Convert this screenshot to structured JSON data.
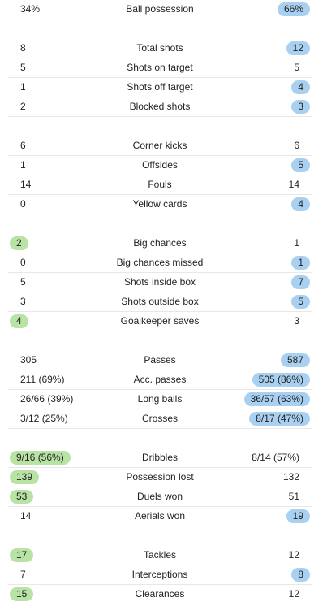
{
  "colors": {
    "home_highlight": "#b8e3a4",
    "away_highlight": "#a9d0f0",
    "divider": "#e8e8e8"
  },
  "groups": [
    {
      "rows": [
        {
          "label": "Ball possession",
          "home": "34%",
          "away": "66%",
          "winner": "away"
        }
      ]
    },
    {
      "rows": [
        {
          "label": "Total shots",
          "home": "8",
          "away": "12",
          "winner": "away"
        },
        {
          "label": "Shots on target",
          "home": "5",
          "away": "5",
          "winner": "none"
        },
        {
          "label": "Shots off target",
          "home": "1",
          "away": "4",
          "winner": "away"
        },
        {
          "label": "Blocked shots",
          "home": "2",
          "away": "3",
          "winner": "away"
        }
      ]
    },
    {
      "rows": [
        {
          "label": "Corner kicks",
          "home": "6",
          "away": "6",
          "winner": "none"
        },
        {
          "label": "Offsides",
          "home": "1",
          "away": "5",
          "winner": "away"
        },
        {
          "label": "Fouls",
          "home": "14",
          "away": "14",
          "winner": "none"
        },
        {
          "label": "Yellow cards",
          "home": "0",
          "away": "4",
          "winner": "away"
        }
      ]
    },
    {
      "rows": [
        {
          "label": "Big chances",
          "home": "2",
          "away": "1",
          "winner": "home"
        },
        {
          "label": "Big chances missed",
          "home": "0",
          "away": "1",
          "winner": "away"
        },
        {
          "label": "Shots inside box",
          "home": "5",
          "away": "7",
          "winner": "away"
        },
        {
          "label": "Shots outside box",
          "home": "3",
          "away": "5",
          "winner": "away"
        },
        {
          "label": "Goalkeeper saves",
          "home": "4",
          "away": "3",
          "winner": "home"
        }
      ]
    },
    {
      "rows": [
        {
          "label": "Passes",
          "home": "305",
          "away": "587",
          "winner": "away"
        },
        {
          "label": "Acc. passes",
          "home": "211 (69%)",
          "away": "505 (86%)",
          "winner": "away"
        },
        {
          "label": "Long balls",
          "home": "26/66 (39%)",
          "away": "36/57 (63%)",
          "winner": "away"
        },
        {
          "label": "Crosses",
          "home": "3/12 (25%)",
          "away": "8/17 (47%)",
          "winner": "away"
        }
      ]
    },
    {
      "rows": [
        {
          "label": "Dribbles",
          "home": "9/16 (56%)",
          "away": "8/14 (57%)",
          "winner": "home"
        },
        {
          "label": "Possession lost",
          "home": "139",
          "away": "132",
          "winner": "home"
        },
        {
          "label": "Duels won",
          "home": "53",
          "away": "51",
          "winner": "home"
        },
        {
          "label": "Aerials won",
          "home": "14",
          "away": "19",
          "winner": "away"
        }
      ]
    },
    {
      "rows": [
        {
          "label": "Tackles",
          "home": "17",
          "away": "12",
          "winner": "home"
        },
        {
          "label": "Interceptions",
          "home": "7",
          "away": "8",
          "winner": "away"
        },
        {
          "label": "Clearances",
          "home": "15",
          "away": "12",
          "winner": "home"
        }
      ]
    }
  ]
}
